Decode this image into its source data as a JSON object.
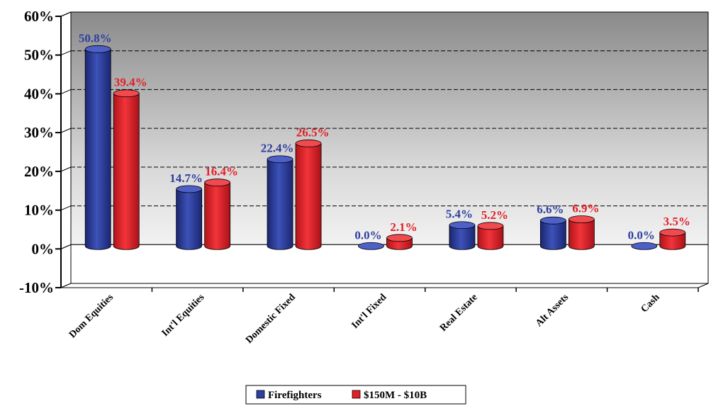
{
  "chart_data": {
    "type": "bar",
    "title": "",
    "xlabel": "",
    "ylabel": "",
    "ylim": [
      -10,
      60
    ],
    "y_ticks": [
      "60%",
      "50%",
      "40%",
      "30%",
      "20%",
      "10%",
      "0%",
      "-10%"
    ],
    "y_tick_values": [
      60,
      50,
      40,
      30,
      20,
      10,
      0,
      -10
    ],
    "categories": [
      "Dom Equities",
      "Int'l Equities",
      "Domestic Fixed",
      "Int'l Fixed",
      "Real Estate",
      "Alt Assets",
      "Cash"
    ],
    "series": [
      {
        "name": "Firefighters",
        "color": "#2e3f9e",
        "values": [
          50.8,
          14.7,
          22.4,
          0.0,
          5.4,
          6.6,
          0.0
        ],
        "labels": [
          "50.8%",
          "14.7%",
          "22.4%",
          "0.0%",
          "5.4%",
          "6.6%",
          "0.0%"
        ]
      },
      {
        "name": "$150M - $10B",
        "color": "#e41e26",
        "values": [
          39.4,
          16.4,
          26.5,
          2.1,
          5.2,
          6.9,
          3.5
        ],
        "labels": [
          "39.4%",
          "16.4%",
          "26.5%",
          "2.1%",
          "5.2%",
          "6.9%",
          "3.5%"
        ]
      }
    ],
    "grid": true,
    "legend_position": "bottom"
  }
}
